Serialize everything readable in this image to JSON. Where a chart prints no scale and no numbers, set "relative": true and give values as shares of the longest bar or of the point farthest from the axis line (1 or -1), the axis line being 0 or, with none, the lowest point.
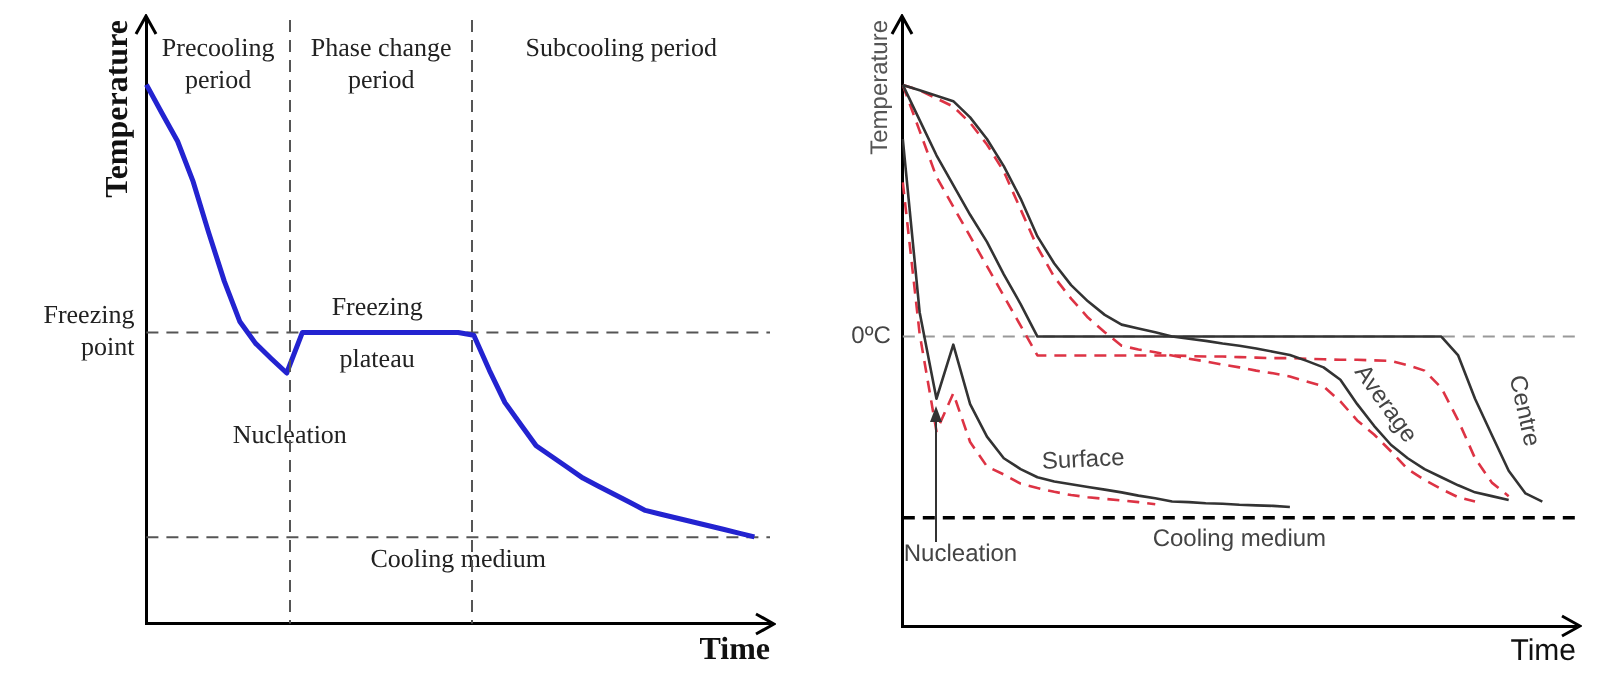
{
  "chart_data": [
    {
      "type": "line",
      "xlabel": "Time",
      "ylabel": "Temperature",
      "relative": true,
      "categories": [
        null,
        null,
        null,
        null,
        null,
        null,
        null,
        null,
        null,
        null,
        null,
        null,
        null,
        null,
        null,
        null,
        null,
        null,
        null,
        null,
        null,
        null,
        null,
        null,
        null,
        null,
        null,
        null,
        null,
        null,
        null,
        null,
        null,
        null,
        null,
        null,
        null,
        null,
        null,
        null,
        null
      ],
      "series": [
        {
          "color": "#2323d0",
          "line_style": "solid",
          "values": [
            1,
            0.947,
            0.895,
            0.82,
            0.725,
            0.635,
            0.56,
            0.52,
            0.492,
            0.465,
            0.54,
            0.54,
            0.54,
            0.54,
            0.54,
            0.54,
            0.54,
            0.54,
            0.54,
            0.54,
            0.54,
            0.535,
            0.47,
            0.41,
            0.37,
            0.33,
            0.31,
            0.29,
            0.27,
            0.255,
            0.24,
            0.225,
            0.21,
            0.203,
            0.196,
            0.189,
            0.182,
            0.175,
            0.168,
            0.161,
            null
          ]
        }
      ],
      "ref_lines": [
        {
          "axis": "y",
          "value": 0.54,
          "label": "Freezing point",
          "color": "#555555",
          "line_style": "dashed"
        },
        {
          "axis": "y",
          "value": 0.16,
          "label": "Cooling medium",
          "color": "#555555",
          "line_style": "dashed"
        }
      ],
      "annotations": [
        "Precooling period",
        "Phase change period",
        "Subcooling period",
        "Freezing plateau",
        "Nucleation"
      ]
    },
    {
      "type": "line",
      "xlabel": "Time",
      "ylabel": "Temperature",
      "relative": true,
      "categories": [
        null,
        null,
        null,
        null,
        null,
        null,
        null,
        null,
        null,
        null,
        null,
        null,
        null,
        null,
        null,
        null,
        null,
        null,
        null,
        null,
        null,
        null,
        null,
        null,
        null,
        null,
        null,
        null,
        null,
        null,
        null,
        null,
        null,
        null,
        null,
        null,
        null,
        null,
        null,
        null,
        null
      ],
      "series": [
        {
          "name": "Surface",
          "color": "#333333",
          "line_style": "solid",
          "values": [
            0.9,
            0.58,
            0.42,
            0.52,
            0.41,
            0.35,
            0.31,
            0.29,
            0.275,
            0.267,
            0.262,
            0.257,
            0.252,
            0.247,
            0.241,
            0.236,
            0.23,
            0.229,
            0.227,
            0.226,
            0.224,
            0.223,
            0.222,
            0.22,
            null,
            null,
            null,
            null,
            null,
            null,
            null,
            null,
            null,
            null,
            null,
            null,
            null,
            null,
            null,
            null,
            null
          ]
        },
        {
          "name": "Average",
          "color": "#333333",
          "line_style": "solid",
          "values": [
            1,
            0.99,
            0.98,
            0.97,
            0.94,
            0.9,
            0.85,
            0.79,
            0.72,
            0.67,
            0.63,
            0.6,
            0.575,
            0.557,
            0.55,
            0.543,
            0.535,
            0.531,
            0.527,
            0.522,
            0.518,
            0.513,
            0.507,
            0.501,
            0.49,
            0.478,
            0.455,
            0.41,
            0.37,
            0.335,
            0.31,
            0.29,
            0.275,
            0.26,
            0.247,
            0.24,
            0.233,
            null,
            null,
            null,
            null
          ]
        },
        {
          "name": "Centre",
          "color": "#333333",
          "line_style": "solid",
          "values": [
            1,
            0.935,
            0.87,
            0.815,
            0.76,
            0.71,
            0.65,
            0.595,
            0.535,
            0.535,
            0.535,
            0.535,
            0.535,
            0.535,
            0.535,
            0.535,
            0.535,
            0.535,
            0.535,
            0.535,
            0.535,
            0.535,
            0.535,
            0.535,
            0.535,
            0.535,
            0.535,
            0.535,
            0.535,
            0.535,
            0.535,
            0.535,
            0.535,
            0.5,
            0.42,
            0.353,
            0.287,
            0.245,
            0.23,
            null,
            null
          ]
        },
        {
          "color": "#dd3344",
          "line_style": "dashed",
          "values": [
            0.82,
            0.54,
            0.36,
            0.43,
            0.34,
            0.295,
            0.28,
            0.263,
            0.255,
            0.248,
            0.242,
            0.238,
            0.235,
            0.232,
            0.229,
            0.225,
            null,
            null,
            null,
            null,
            null,
            null,
            null,
            null,
            null,
            null,
            null,
            null,
            null,
            null,
            null,
            null,
            null,
            null,
            null,
            null,
            null,
            null,
            null,
            null,
            null
          ]
        },
        {
          "color": "#dd3344",
          "line_style": "dashed",
          "values": [
            1,
            0.99,
            0.975,
            0.96,
            0.93,
            0.89,
            0.84,
            0.77,
            0.7,
            0.645,
            0.605,
            0.57,
            0.543,
            0.518,
            0.511,
            0.506,
            0.5,
            0.494,
            0.489,
            0.483,
            0.478,
            0.472,
            0.467,
            0.461,
            0.452,
            0.443,
            0.415,
            0.38,
            0.354,
            0.323,
            0.29,
            0.27,
            0.253,
            0.238,
            0.23,
            null,
            null,
            null,
            null,
            null,
            null
          ]
        },
        {
          "color": "#dd3344",
          "line_style": "dashed",
          "values": [
            1,
            0.915,
            0.83,
            0.775,
            0.72,
            0.665,
            0.61,
            0.555,
            0.5,
            0.5,
            0.5,
            0.5,
            0.5,
            0.5,
            0.5,
            0.5,
            0.5,
            0.499,
            0.498,
            0.498,
            0.497,
            0.496,
            0.495,
            0.495,
            0.494,
            0.493,
            0.492,
            0.492,
            0.491,
            0.49,
            0.482,
            0.472,
            0.44,
            0.38,
            0.31,
            0.265,
            0.24,
            null,
            null,
            null,
            null
          ]
        }
      ],
      "ref_lines": [
        {
          "axis": "y",
          "value": 0.535,
          "label": "0ºC",
          "color": "#999999",
          "line_style": "dashed"
        },
        {
          "axis": "y",
          "value": 0.2,
          "label": "Cooling medium",
          "color": "#000000",
          "line_style": "dashed"
        }
      ],
      "annotations": [
        "Nucleation"
      ]
    }
  ]
}
